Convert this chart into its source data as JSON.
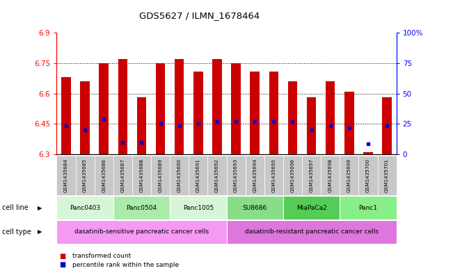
{
  "title": "GDS5627 / ILMN_1678464",
  "samples": [
    "GSM1435684",
    "GSM1435685",
    "GSM1435686",
    "GSM1435687",
    "GSM1435688",
    "GSM1435689",
    "GSM1435690",
    "GSM1435691",
    "GSM1435692",
    "GSM1435693",
    "GSM1435694",
    "GSM1435695",
    "GSM1435696",
    "GSM1435697",
    "GSM1435698",
    "GSM1435699",
    "GSM1435700",
    "GSM1435701"
  ],
  "red_values": [
    6.68,
    6.66,
    6.75,
    6.77,
    6.58,
    6.75,
    6.77,
    6.71,
    6.77,
    6.75,
    6.71,
    6.71,
    6.66,
    6.58,
    6.66,
    6.61,
    6.31,
    6.58
  ],
  "blue_values": [
    6.44,
    6.42,
    6.47,
    6.36,
    6.36,
    6.45,
    6.44,
    6.45,
    6.46,
    6.46,
    6.46,
    6.46,
    6.46,
    6.42,
    6.44,
    6.43,
    6.35,
    6.44
  ],
  "y_min": 6.3,
  "y_max": 6.9,
  "y_ticks": [
    6.3,
    6.45,
    6.6,
    6.75,
    6.9
  ],
  "right_y_ticks": [
    0,
    25,
    50,
    75,
    100
  ],
  "cell_lines": [
    {
      "label": "Panc0403",
      "start": 0,
      "end": 3,
      "color": "#d8f5d8"
    },
    {
      "label": "Panc0504",
      "start": 3,
      "end": 6,
      "color": "#aaeaaa"
    },
    {
      "label": "Panc1005",
      "start": 6,
      "end": 9,
      "color": "#d8f5d8"
    },
    {
      "label": "SU8686",
      "start": 9,
      "end": 12,
      "color": "#88dd88"
    },
    {
      "label": "MiaPaCa2",
      "start": 12,
      "end": 15,
      "color": "#55cc55"
    },
    {
      "label": "Panc1",
      "start": 15,
      "end": 18,
      "color": "#88ee88"
    }
  ],
  "cell_types": [
    {
      "label": "dasatinib-sensitive pancreatic cancer cells",
      "start": 0,
      "end": 9,
      "color": "#f599f5"
    },
    {
      "label": "dasatinib-resistant pancreatic cancer cells",
      "start": 9,
      "end": 18,
      "color": "#dd77dd"
    }
  ],
  "bar_width": 0.5,
  "red_color": "#cc0000",
  "blue_color": "#0000cc",
  "sample_bg_color": "#c8c8c8",
  "fig_width": 6.51,
  "fig_height": 3.93,
  "dpi": 100
}
